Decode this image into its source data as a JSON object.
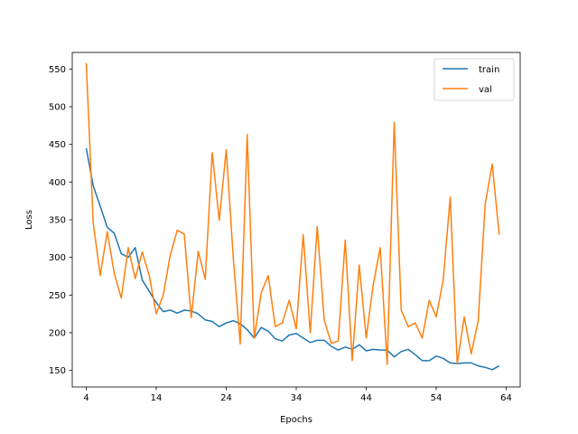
{
  "chart_data": {
    "type": "line",
    "title": "",
    "xlabel": "Epochs",
    "ylabel": "Loss",
    "xlim": [
      2,
      66
    ],
    "ylim": [
      128,
      572
    ],
    "xticks": [
      4,
      14,
      24,
      34,
      44,
      54,
      64
    ],
    "yticks": [
      150,
      200,
      250,
      300,
      350,
      400,
      450,
      500,
      550
    ],
    "grid": false,
    "legend_position": "top-right",
    "x": [
      4,
      5,
      6,
      7,
      8,
      9,
      10,
      11,
      12,
      13,
      14,
      15,
      16,
      17,
      18,
      19,
      20,
      21,
      22,
      23,
      24,
      25,
      26,
      27,
      28,
      29,
      30,
      31,
      32,
      33,
      34,
      35,
      36,
      37,
      38,
      39,
      40,
      41,
      42,
      43,
      44,
      45,
      46,
      47,
      48,
      49,
      50,
      51,
      52,
      53,
      54,
      55,
      56,
      57,
      58,
      59,
      60,
      61,
      62,
      63
    ],
    "series": [
      {
        "name": "train",
        "color": "#1f77b4",
        "values": [
          445,
          395,
          368,
          340,
          332,
          305,
          300,
          313,
          270,
          255,
          240,
          228,
          230,
          226,
          230,
          229,
          225,
          217,
          215,
          208,
          213,
          216,
          212,
          204,
          193,
          207,
          202,
          192,
          189,
          197,
          199,
          193,
          187,
          190,
          190,
          182,
          177,
          181,
          178,
          184,
          176,
          178,
          177,
          177,
          168,
          175,
          178,
          171,
          163,
          163,
          169,
          166,
          160,
          159,
          160,
          160,
          156,
          154,
          151,
          156
        ]
      },
      {
        "name": "val",
        "color": "#ff7f0e",
        "values": [
          558,
          345,
          276,
          334,
          279,
          246,
          313,
          272,
          307,
          276,
          225,
          250,
          303,
          336,
          331,
          220,
          308,
          271,
          439,
          349,
          443,
          300,
          185,
          463,
          193,
          253,
          276,
          208,
          213,
          243,
          205,
          330,
          200,
          341,
          217,
          186,
          189,
          323,
          163,
          290,
          193,
          264,
          313,
          158,
          479,
          230,
          208,
          213,
          193,
          243,
          221,
          270,
          380,
          159,
          221,
          172,
          216,
          371,
          424,
          330
        ]
      }
    ]
  }
}
